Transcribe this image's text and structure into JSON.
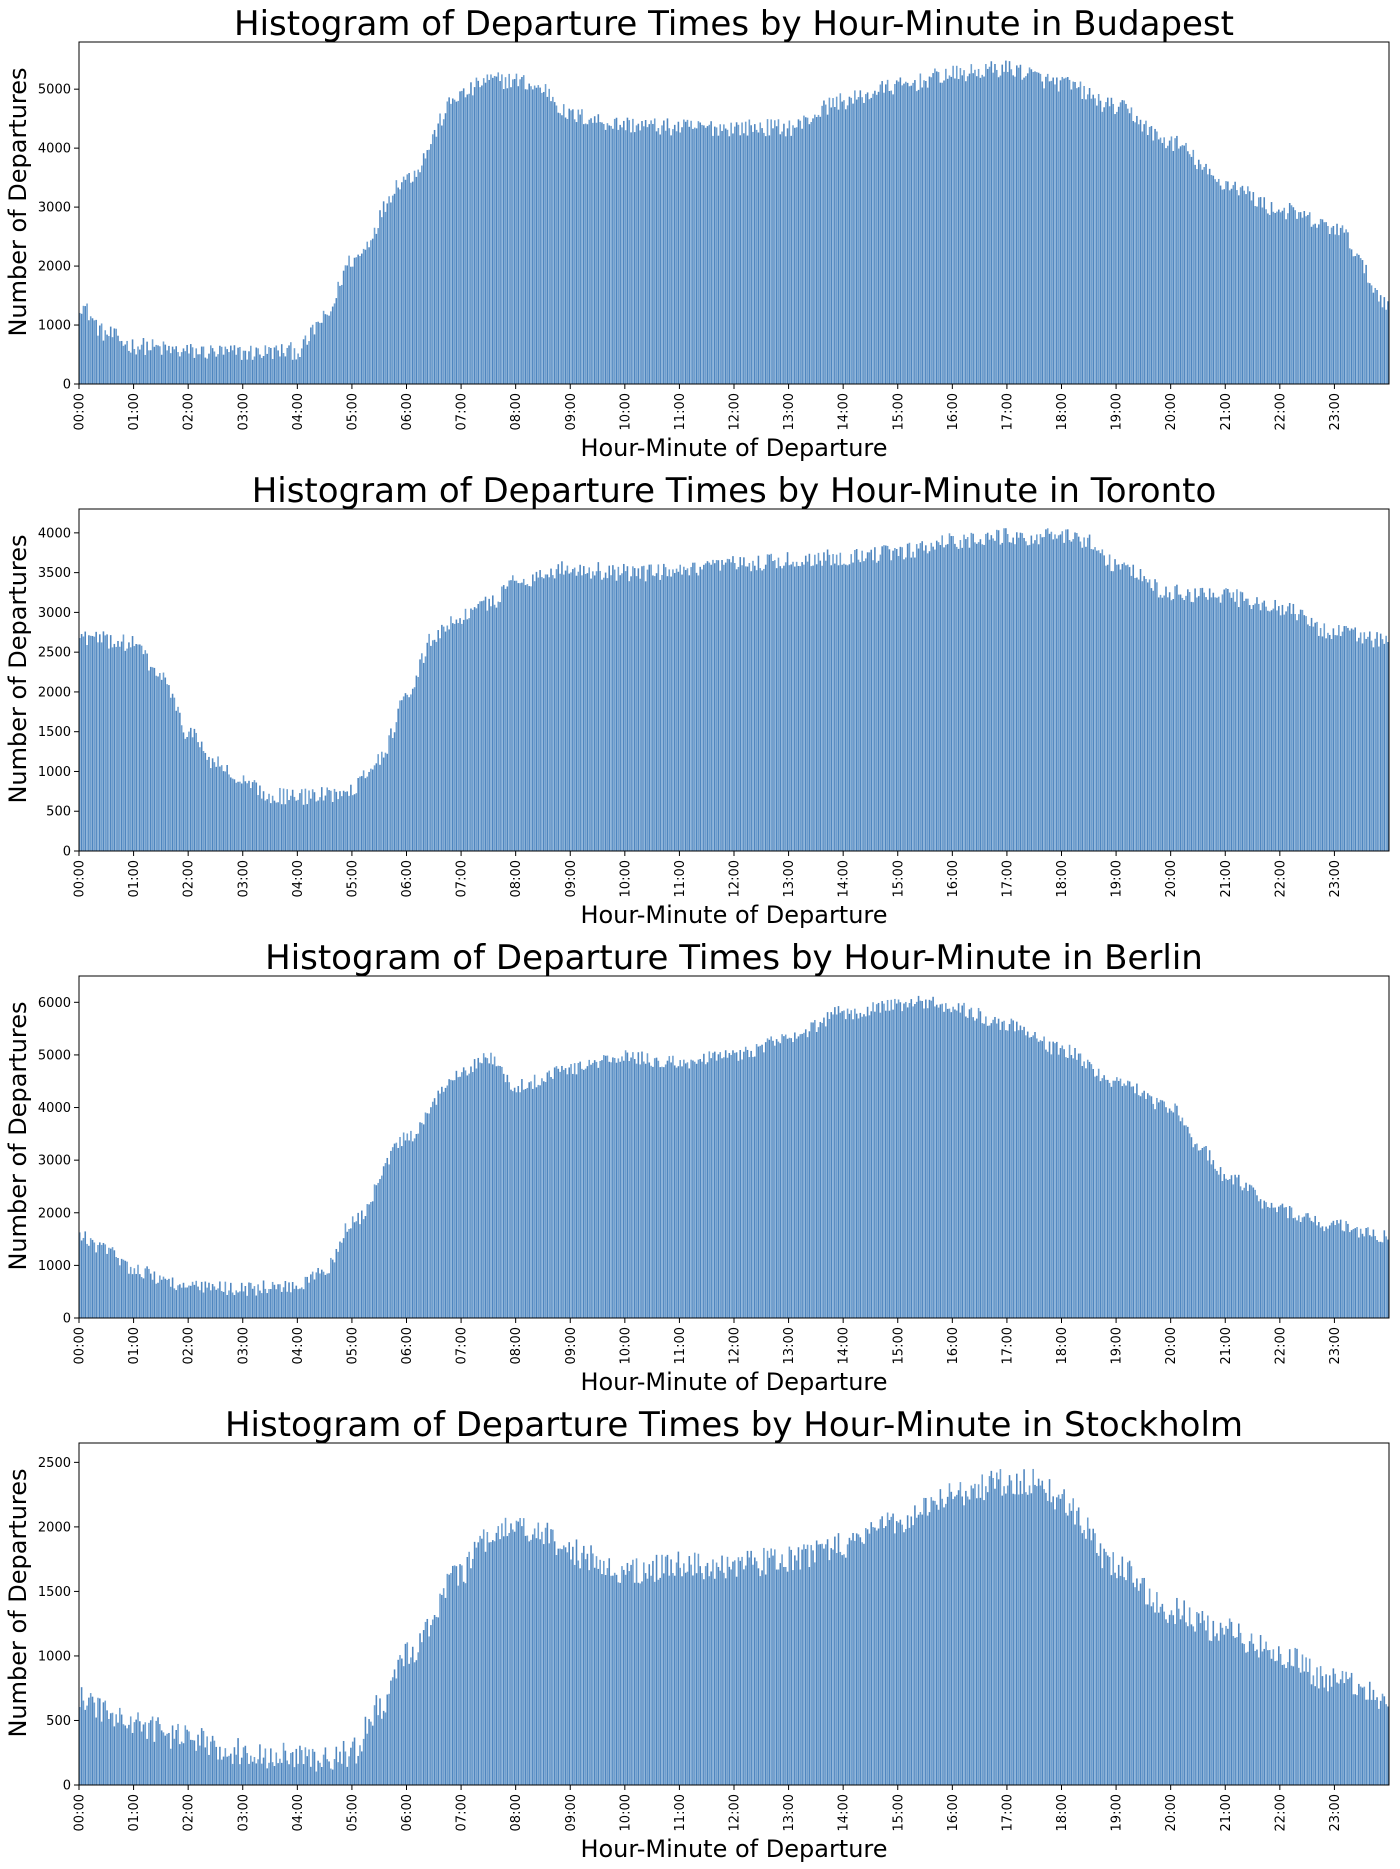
{
  "figure": {
    "bar_color": "#6e9fcf",
    "bar_edge_color": "#4f86bf",
    "x_ticks": [
      "00:00",
      "01:00",
      "02:00",
      "03:00",
      "04:00",
      "05:00",
      "06:00",
      "07:00",
      "08:00",
      "09:00",
      "10:00",
      "11:00",
      "12:00",
      "13:00",
      "14:00",
      "15:00",
      "16:00",
      "17:00",
      "18:00",
      "19:00",
      "20:00",
      "21:00",
      "22:00",
      "23:00"
    ]
  },
  "chart_data": [
    {
      "type": "bar",
      "title": "Histogram of Departure Times by Hour-Minute in Budapest",
      "xlabel": "Hour-Minute of Departure",
      "ylabel": "Number of Departures",
      "ylim": [
        0,
        5800
      ],
      "yticks": [
        "0",
        "1000",
        "2000",
        "3000",
        "4000",
        "5000"
      ],
      "ytick_values": [
        0,
        1000,
        2000,
        3000,
        4000,
        5000
      ],
      "x_unit": "minute of day",
      "xlim": [
        0,
        1440
      ],
      "profile_hours": [
        0,
        0.5,
        1,
        2,
        3,
        4,
        4.5,
        5,
        6,
        7,
        7.5,
        8,
        8.5,
        9,
        10,
        11,
        12,
        13,
        14,
        15,
        16,
        17,
        18,
        19,
        20,
        21,
        22,
        23,
        24
      ],
      "profile_values": [
        1350,
        850,
        650,
        550,
        530,
        560,
        1100,
        2100,
        3500,
        4900,
        5150,
        5150,
        5000,
        4550,
        4400,
        4350,
        4350,
        4350,
        4800,
        5050,
        5250,
        5350,
        5100,
        4700,
        4100,
        3400,
        2950,
        2650,
        1400
      ],
      "noise": 150
    },
    {
      "type": "bar",
      "title": "Histogram of Departure Times by Hour-Minute in Toronto",
      "xlabel": "Hour-Minute of Departure",
      "ylabel": "Number of Departures",
      "ylim": [
        0,
        4300
      ],
      "yticks": [
        "0",
        "500",
        "1000",
        "1500",
        "2000",
        "2500",
        "3000",
        "3500",
        "4000"
      ],
      "ytick_values": [
        0,
        500,
        1000,
        1500,
        2000,
        2500,
        3000,
        3500,
        4000
      ],
      "x_unit": "minute of day",
      "xlim": [
        0,
        1440
      ],
      "profile_hours": [
        0,
        0.5,
        1,
        1.5,
        2,
        2.5,
        3,
        3.5,
        4,
        4.5,
        5,
        5.5,
        6,
        6.5,
        7,
        7.5,
        8,
        9,
        10,
        11,
        12,
        13,
        14,
        15,
        16,
        17,
        18,
        18.5,
        19,
        20,
        21,
        22,
        23,
        24
      ],
      "profile_values": [
        2700,
        2650,
        2600,
        2200,
        1500,
        1100,
        850,
        700,
        680,
        700,
        800,
        1150,
        1900,
        2700,
        2950,
        3100,
        3400,
        3550,
        3500,
        3500,
        3600,
        3650,
        3700,
        3750,
        3900,
        3950,
        3950,
        3900,
        3600,
        3250,
        3200,
        3050,
        2750,
        2650
      ],
      "noise": 110
    },
    {
      "type": "bar",
      "title": "Histogram of Departure Times by Hour-Minute in Berlin",
      "xlabel": "Hour-Minute of Departure",
      "ylabel": "Number of Departures",
      "ylim": [
        0,
        6500
      ],
      "yticks": [
        "0",
        "1000",
        "2000",
        "3000",
        "4000",
        "5000",
        "6000"
      ],
      "ytick_values": [
        0,
        1000,
        2000,
        3000,
        4000,
        5000,
        6000
      ],
      "x_unit": "minute of day",
      "xlim": [
        0,
        1440
      ],
      "profile_hours": [
        0,
        0.5,
        1,
        1.5,
        2,
        3,
        4,
        4.5,
        5,
        6,
        7,
        7.5,
        8,
        9,
        10,
        11,
        12,
        13,
        14,
        15,
        15.5,
        16,
        17,
        18,
        19,
        20,
        20.5,
        21,
        22,
        23,
        24
      ],
      "profile_values": [
        1550,
        1300,
        950,
        750,
        580,
        560,
        600,
        900,
        1800,
        3400,
        4700,
        4950,
        4400,
        4750,
        4950,
        4850,
        5000,
        5300,
        5800,
        5950,
        6000,
        5900,
        5600,
        5100,
        4500,
        4000,
        3300,
        2700,
        2050,
        1750,
        1550
      ],
      "noise": 140
    },
    {
      "type": "bar",
      "title": "Histogram of Departure Times by Hour-Minute in Stockholm",
      "xlabel": "Hour-Minute of Departure",
      "ylabel": "Number of Departures",
      "ylim": [
        0,
        2650
      ],
      "yticks": [
        "0",
        "500",
        "1000",
        "1500",
        "2000",
        "2500"
      ],
      "ytick_values": [
        0,
        500,
        1000,
        1500,
        2000,
        2500
      ],
      "x_unit": "minute of day",
      "xlim": [
        0,
        1440
      ],
      "profile_hours": [
        0,
        0.5,
        1,
        2,
        3,
        4,
        4.5,
        5,
        5.5,
        6,
        7,
        7.5,
        8,
        8.5,
        9,
        10,
        11,
        12,
        13,
        14,
        15,
        16,
        17,
        17.5,
        18,
        19,
        20,
        21,
        22,
        23,
        24
      ],
      "profile_values": [
        680,
        560,
        470,
        360,
        260,
        210,
        200,
        250,
        600,
        1000,
        1650,
        1900,
        2000,
        1950,
        1800,
        1650,
        1700,
        1700,
        1750,
        1850,
        2050,
        2250,
        2350,
        2350,
        2200,
        1700,
        1350,
        1200,
        1000,
        800,
        680
      ],
      "noise": 110
    }
  ]
}
